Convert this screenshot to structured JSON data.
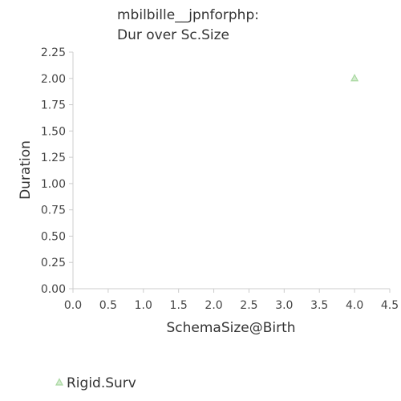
{
  "chart_data": {
    "type": "scatter",
    "title": [
      "mbilbille__jpnforphp:",
      "Dur over Sc.Size"
    ],
    "xlabel": "SchemaSize@Birth",
    "ylabel": "Duration",
    "xlim": [
      0,
      4.5
    ],
    "ylim": [
      0,
      2.25
    ],
    "x_ticks": [
      "0.0",
      "0.5",
      "1.0",
      "1.5",
      "2.0",
      "2.5",
      "3.0",
      "3.5",
      "4.0",
      "4.5"
    ],
    "y_ticks": [
      "0.00",
      "0.25",
      "0.50",
      "0.75",
      "1.00",
      "1.25",
      "1.50",
      "1.75",
      "2.00",
      "2.25"
    ],
    "grid": false,
    "legend_position": "bottom-left",
    "series": [
      {
        "name": "Rigid.Surv",
        "marker": "triangle",
        "color": "#a8d8a0",
        "points": [
          {
            "x": 4.0,
            "y": 2.0
          }
        ]
      }
    ]
  }
}
